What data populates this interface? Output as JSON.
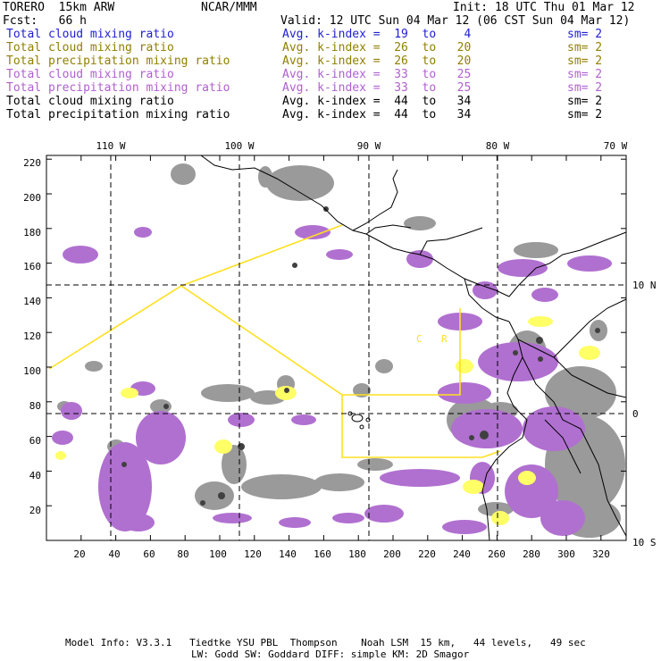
{
  "header": {
    "model": "TORERO  15km ARW",
    "center": "NCAR/MMM",
    "init": "Init: 18 UTC Thu 01 Mar 12",
    "fcst": "Fcst:   66 h",
    "valid": "Valid: 12 UTC Sun 04 Mar 12 (06 CST Sun 04 Mar 12)"
  },
  "colors": {
    "blue": "#2020d0",
    "olive": "#908000",
    "purple": "#b060d0",
    "black": "#000000",
    "cloud_fill": "#b070d0",
    "gray": "#9a9a9a",
    "dark_gray": "#505050",
    "yellow": "#ffff66",
    "yellow_line": "#ffe020"
  },
  "legend_rows": [
    {
      "field": "Total cloud mixing ratio",
      "avg": "Avg. k-index =  19  to    4",
      "sm": "sm= 2",
      "color": "#2020d0"
    },
    {
      "field": "Total cloud mixing ratio",
      "avg": "Avg. k-index =  26  to   20",
      "sm": "sm= 2",
      "color": "#908000"
    },
    {
      "field": "Total precipitation mixing ratio",
      "avg": "Avg. k-index =  26  to   20",
      "sm": "sm= 2",
      "color": "#908000"
    },
    {
      "field": "Total cloud mixing ratio",
      "avg": "Avg. k-index =  33  to   25",
      "sm": "sm= 2",
      "color": "#b060d0"
    },
    {
      "field": "Total precipitation mixing ratio",
      "avg": "Avg. k-index =  33  to   25",
      "sm": "sm= 2",
      "color": "#b060d0"
    },
    {
      "field": "Total cloud mixing ratio",
      "avg": "Avg. k-index =  44  to   34",
      "sm": "sm= 2",
      "color": "#000000"
    },
    {
      "field": "Total precipitation mixing ratio",
      "avg": "Avg. k-index =  44  to   34",
      "sm": "sm= 2",
      "color": "#000000"
    }
  ],
  "map": {
    "lon_labels": [
      "110 W",
      "100 W",
      "90 W",
      "80 W",
      "70 W"
    ],
    "lat_labels": [
      "10 N",
      "0",
      "10 S"
    ],
    "y_ticks": [
      "220",
      "200",
      "180",
      "160",
      "140",
      "120",
      "100",
      "80",
      "60",
      "40",
      "20"
    ],
    "x_ticks": [
      "20",
      "40",
      "60",
      "80",
      "100",
      "120",
      "140",
      "160",
      "180",
      "200",
      "220",
      "240",
      "260",
      "280",
      "300",
      "320"
    ],
    "country_labels": [
      "C",
      "R"
    ]
  },
  "footer": {
    "line1": "Model Info: V3.3.1   Tiedtke YSU PBL  Thompson    Noah LSM  15 km,   44 levels,   49 sec",
    "line2": "LW: Godd SW: Goddard DIFF: simple KM: 2D Smagor"
  }
}
